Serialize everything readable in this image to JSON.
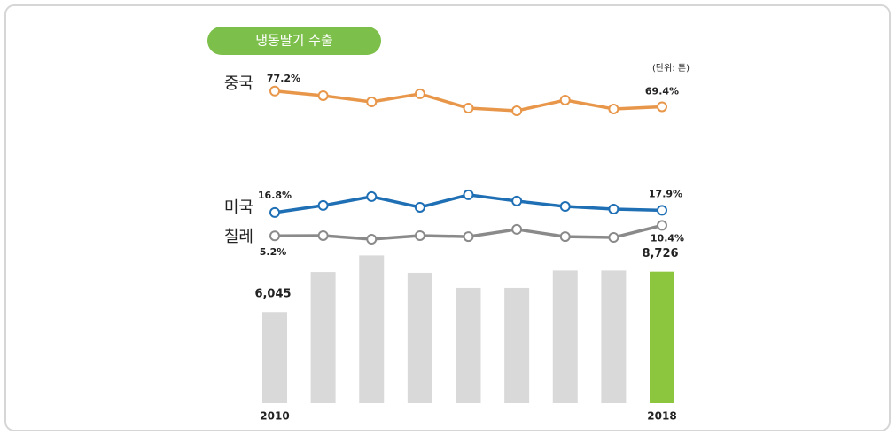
{
  "chart_data": {
    "type": "line_bar",
    "title": "냉동딸기 수출",
    "unit_note": "(단위: 톤)",
    "categories": [
      "2010",
      null,
      null,
      null,
      null,
      null,
      null,
      null,
      "2018"
    ],
    "ylim": [
      0,
      100
    ],
    "series": [
      {
        "name": "중국",
        "color": "#e8974a",
        "values": [
          77.2,
          74.9,
          71.8,
          75.8,
          68.7,
          67.4,
          72.7,
          68.3,
          69.4
        ],
        "value_labels": [
          "77.2%",
          null,
          null,
          null,
          null,
          null,
          null,
          null,
          "69.4%"
        ]
      },
      {
        "name": "미국",
        "color": "#1f6fb5",
        "values": [
          16.8,
          20.3,
          24.7,
          19.4,
          25.6,
          22.5,
          19.8,
          18.5,
          17.9
        ],
        "value_labels": [
          "16.8%",
          null,
          null,
          null,
          null,
          null,
          null,
          null,
          "17.9%"
        ]
      },
      {
        "name": "칠레",
        "color": "#8a8a8a",
        "values": [
          5.2,
          5.3,
          3.5,
          5.3,
          4.8,
          8.4,
          4.8,
          4.4,
          10.4
        ],
        "value_labels": [
          "5.2%",
          null,
          null,
          null,
          null,
          null,
          null,
          null,
          "10.4%"
        ]
      }
    ],
    "bars": {
      "y2lim": [
        0,
        10000
      ],
      "values": [
        6045,
        8700,
        9800,
        8650,
        7650,
        7650,
        8800,
        8800,
        8726
      ],
      "value_labels": [
        "6,045",
        null,
        null,
        null,
        null,
        null,
        null,
        null,
        "8,726"
      ],
      "colors": [
        "#d9d9d9",
        "#d9d9d9",
        "#d9d9d9",
        "#d9d9d9",
        "#d9d9d9",
        "#d9d9d9",
        "#d9d9d9",
        "#d9d9d9",
        "#8cc63f"
      ]
    }
  }
}
